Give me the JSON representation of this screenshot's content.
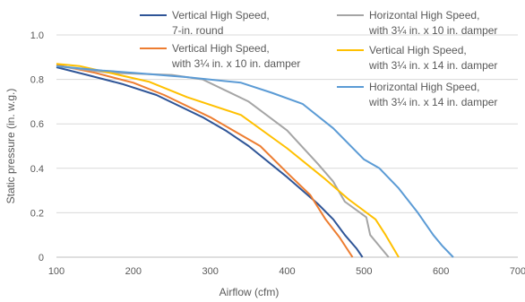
{
  "chart_data": {
    "type": "line",
    "title": "",
    "xlabel": "Airflow (cfm)",
    "ylabel": "Static pressure (in. w.g.)",
    "xlim": [
      100,
      700
    ],
    "ylim": [
      0,
      1.0
    ],
    "x_ticks": [
      100,
      200,
      300,
      400,
      500,
      600,
      700
    ],
    "y_ticks": [
      0,
      0.2,
      0.4,
      0.6,
      0.8,
      1.0
    ],
    "x_tick_labels": [
      "100",
      "200",
      "300",
      "400",
      "500",
      "600",
      "700"
    ],
    "y_tick_labels": [
      "0",
      "0.2",
      "0.4",
      "0.6",
      "0.8",
      "1.0"
    ],
    "grid": "horizontal",
    "legend_position": "top",
    "series": [
      {
        "name_lines": [
          "Vertical High Speed,",
          "7-in. round"
        ],
        "color": "#2F5597",
        "points": [
          [
            100,
            0.855
          ],
          [
            140,
            0.82
          ],
          [
            185,
            0.78
          ],
          [
            230,
            0.73
          ],
          [
            290,
            0.63
          ],
          [
            320,
            0.57
          ],
          [
            350,
            0.5
          ],
          [
            400,
            0.36
          ],
          [
            440,
            0.24
          ],
          [
            460,
            0.17
          ],
          [
            475,
            0.1
          ],
          [
            490,
            0.04
          ],
          [
            498,
            0
          ]
        ]
      },
      {
        "name_lines": [
          "Vertical High Speed,",
          "with 3¼ in. x 10 in. damper"
        ],
        "color": "#ED7D31",
        "points": [
          [
            100,
            0.865
          ],
          [
            150,
            0.83
          ],
          [
            200,
            0.785
          ],
          [
            240,
            0.73
          ],
          [
            300,
            0.63
          ],
          [
            335,
            0.56
          ],
          [
            365,
            0.5
          ],
          [
            400,
            0.38
          ],
          [
            430,
            0.28
          ],
          [
            450,
            0.17
          ],
          [
            468,
            0.09
          ],
          [
            485,
            0
          ]
        ]
      },
      {
        "name_lines": [
          "Horizontal High Speed,",
          "with 3¼ in. x 10 in. damper"
        ],
        "color": "#A5A5A5",
        "points": [
          [
            100,
            0.86
          ],
          [
            170,
            0.83
          ],
          [
            250,
            0.82
          ],
          [
            290,
            0.8
          ],
          [
            350,
            0.7
          ],
          [
            400,
            0.57
          ],
          [
            440,
            0.42
          ],
          [
            460,
            0.34
          ],
          [
            475,
            0.25
          ],
          [
            503,
            0.18
          ],
          [
            508,
            0.1
          ],
          [
            520,
            0.05
          ],
          [
            532,
            0
          ]
        ]
      },
      {
        "name_lines": [
          "Vertical High Speed,",
          "with 3¼ in. x 14 in. damper"
        ],
        "color": "#FFC000",
        "points": [
          [
            100,
            0.87
          ],
          [
            130,
            0.86
          ],
          [
            220,
            0.79
          ],
          [
            270,
            0.72
          ],
          [
            340,
            0.64
          ],
          [
            400,
            0.49
          ],
          [
            450,
            0.35
          ],
          [
            480,
            0.26
          ],
          [
            515,
            0.17
          ],
          [
            528,
            0.1
          ],
          [
            545,
            0
          ]
        ]
      },
      {
        "name_lines": [
          "Horizontal High Speed,",
          "with 3¼ in. x 14 in. damper"
        ],
        "color": "#5B9BD5",
        "points": [
          [
            100,
            0.86
          ],
          [
            160,
            0.84
          ],
          [
            200,
            0.83
          ],
          [
            270,
            0.81
          ],
          [
            340,
            0.785
          ],
          [
            380,
            0.74
          ],
          [
            420,
            0.69
          ],
          [
            460,
            0.58
          ],
          [
            500,
            0.44
          ],
          [
            520,
            0.4
          ],
          [
            545,
            0.31
          ],
          [
            570,
            0.2
          ],
          [
            590,
            0.1
          ],
          [
            602,
            0.05
          ],
          [
            616,
            0
          ]
        ]
      }
    ]
  }
}
